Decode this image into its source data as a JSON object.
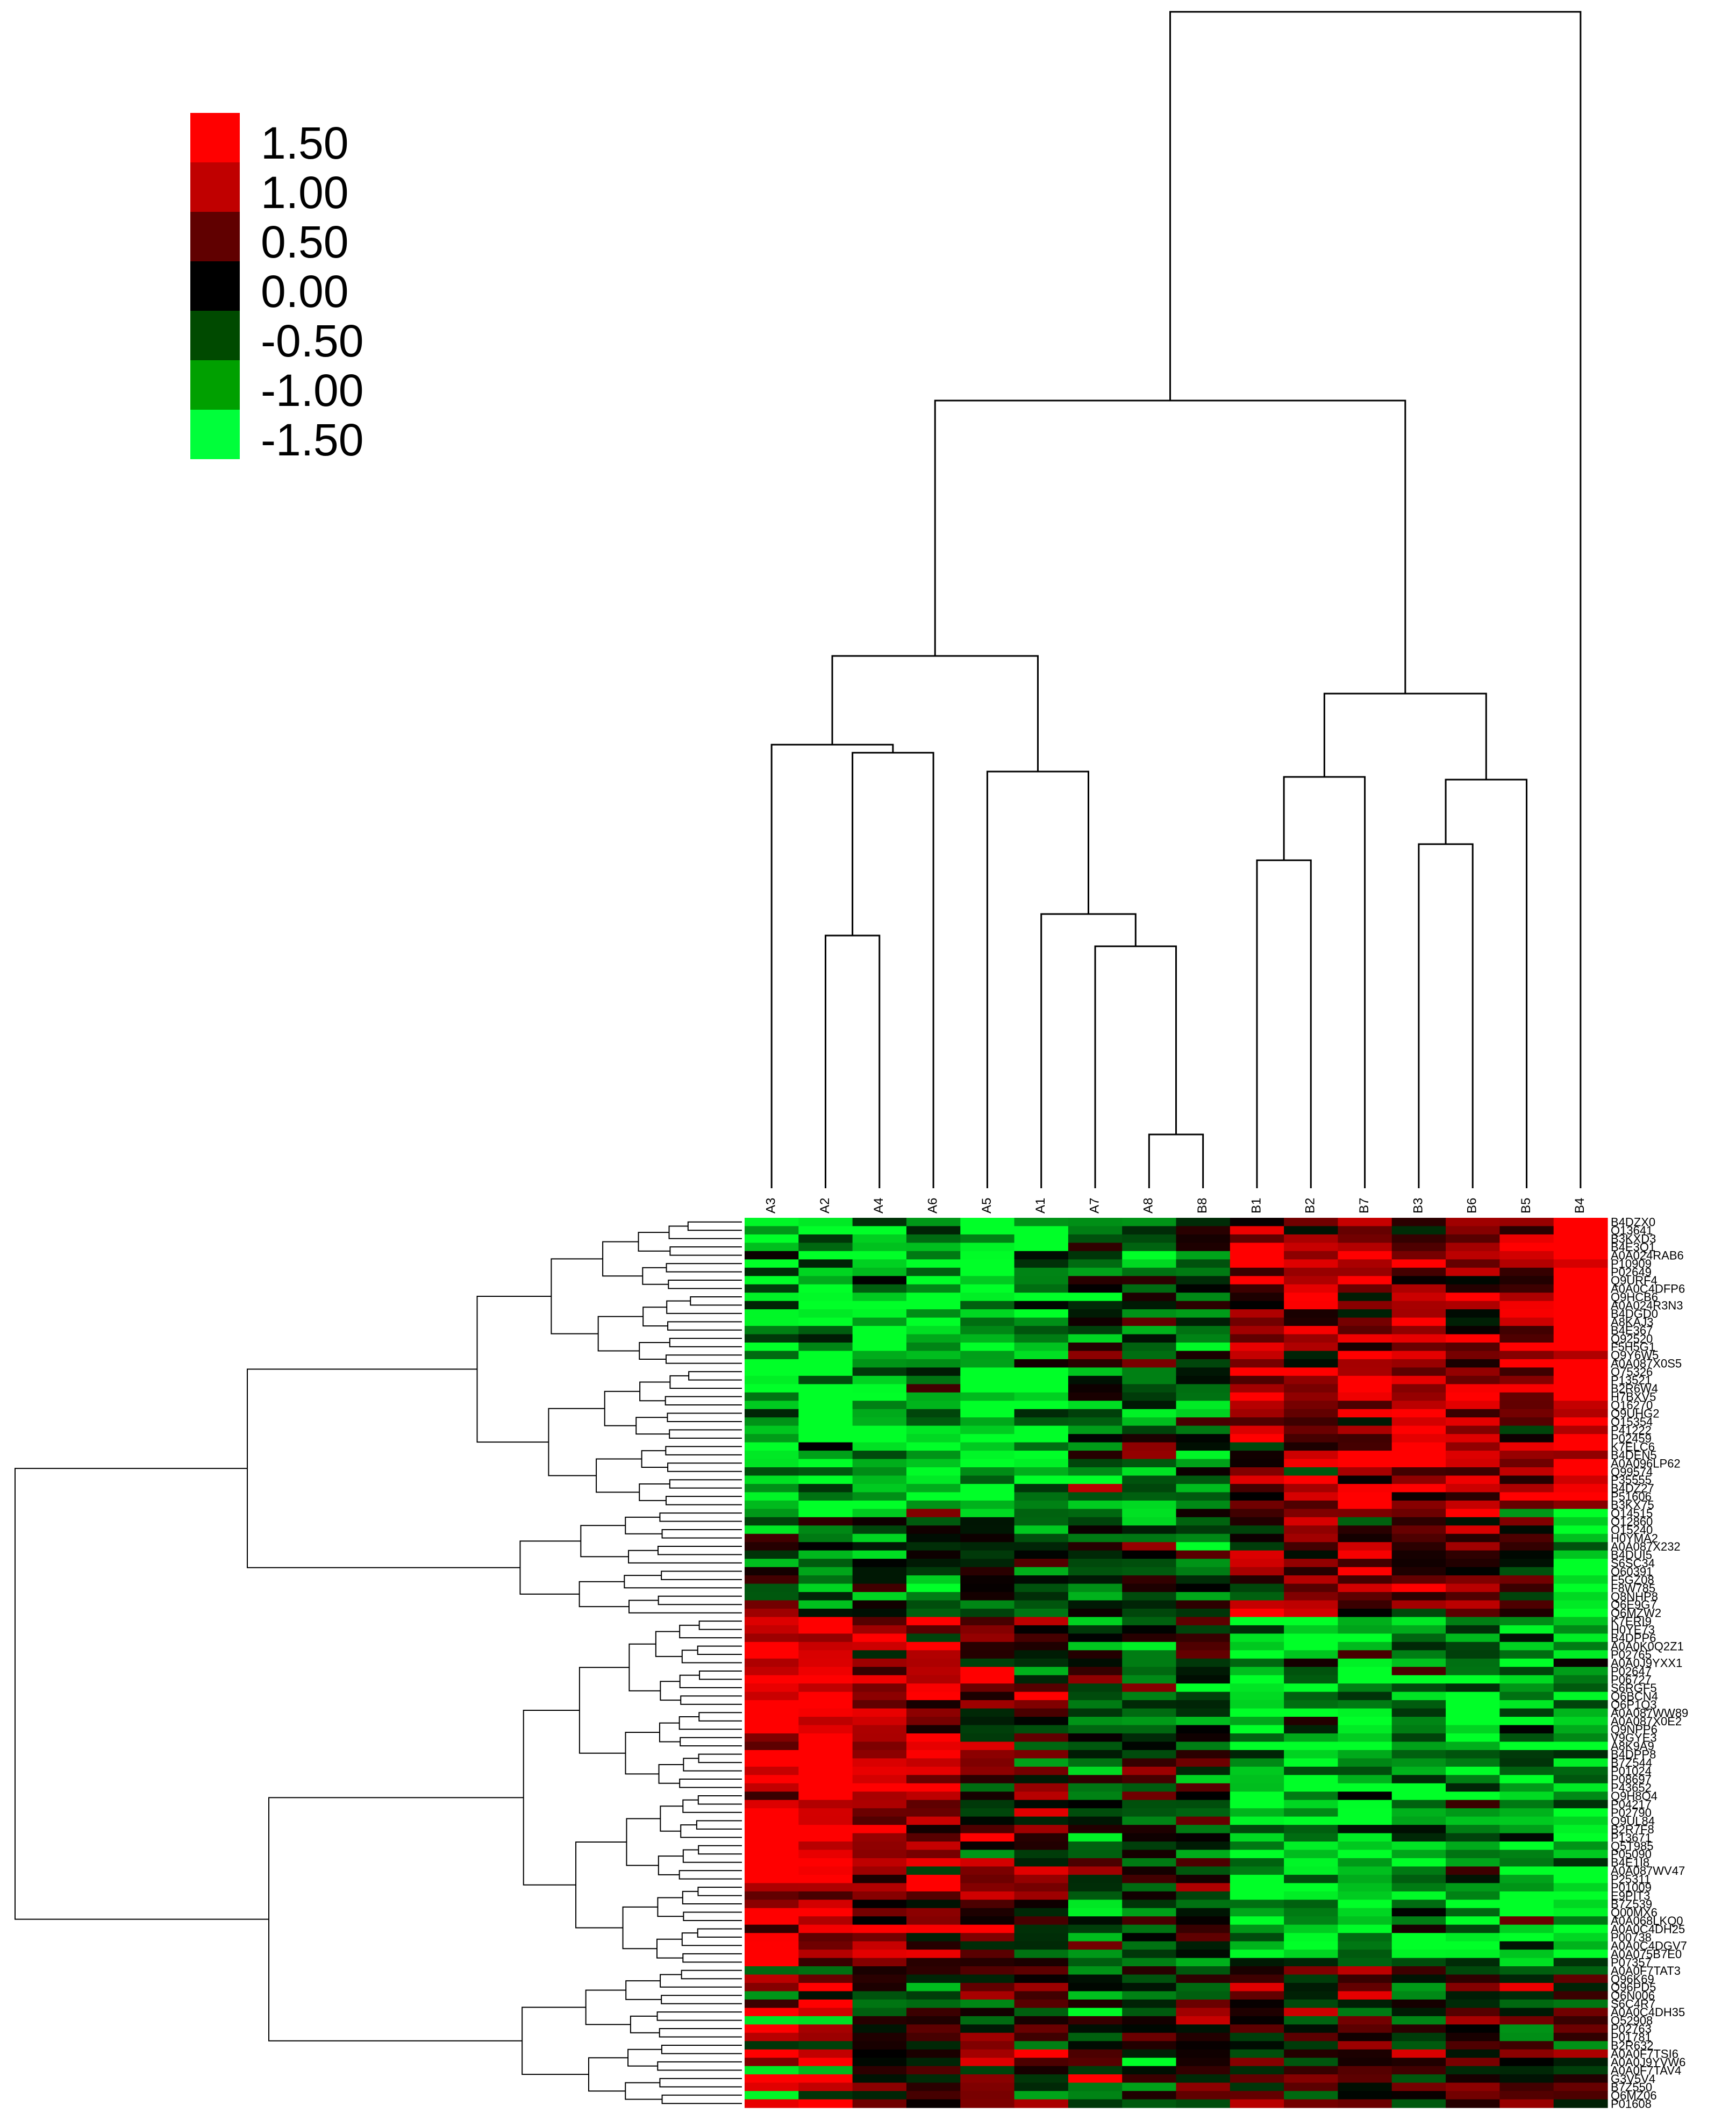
{
  "chart_data": {
    "type": "heatmap",
    "legend": {
      "labels": [
        "1.50",
        "1.00",
        "0.50",
        "0.00",
        "-0.50",
        "-1.00",
        "-1.50"
      ],
      "values": [
        1.5,
        1.0,
        0.5,
        0.0,
        -0.5,
        -1.0,
        -1.5
      ],
      "colors": [
        "#ff0000",
        "#c00000",
        "#600000",
        "#000000",
        "#004a00",
        "#00a000",
        "#00ff3a"
      ],
      "placement": "top-left"
    },
    "columns": [
      "A3",
      "A2",
      "A4",
      "A6",
      "A5",
      "A1",
      "A7",
      "A8",
      "B8",
      "B1",
      "B2",
      "B7",
      "B3",
      "B6",
      "B5",
      "B4"
    ],
    "rows": [
      "B4DZX0",
      "Q13641",
      "B3KXD3",
      "B4E3Q1",
      "A0A024RAB6",
      "P10909",
      "P02649",
      "Q9URF4",
      "A0A0C4DFP6",
      "Q9HCB6",
      "A0A024R3N3",
      "B4DGD0",
      "A8KAJ3",
      "B4E367",
      "Q92520",
      "F5H5G1",
      "Q9Y6W5",
      "A0A087X0S5",
      "O75326",
      "P13521",
      "B2R6W4",
      "H7BXV5",
      "Q16270",
      "Q9UHG2",
      "O15354",
      "P41222",
      "P02459",
      "K7ELC6",
      "B4DEN5",
      "A0A096LP62",
      "Q99574",
      "P35555",
      "B4DZ27",
      "P51606",
      "B3KX75",
      "Q14515",
      "O12860",
      "O15240",
      "H0YMA2",
      "A0A087X232",
      "B4DUI5",
      "S6SC34",
      "O60391",
      "F5GZ08",
      "F8W785",
      "Q8NHP8",
      "Q6E9G7",
      "Q6MZW2",
      "K7ERI9",
      "H0YE73",
      "B4DPP6",
      "A0A0K0Q2Z1",
      "P02765",
      "A0A0J9YXX1",
      "P02647",
      "P06727",
      "S6RGF5",
      "Q6BCN4",
      "Q6P1Q3",
      "A0A087WW89",
      "A0A087X0E2",
      "Q9NPP6",
      "V9GYE3",
      "A8K9A9",
      "B4DPP8",
      "B7Z544",
      "P01024",
      "P08697",
      "P43652",
      "Q9H8O4",
      "P04217",
      "P02790",
      "Q9UL84",
      "B2R7F8",
      "P13671",
      "Q5T985",
      "P05090",
      "B4E1I8",
      "A0A087WV47",
      "P25311",
      "P01009",
      "E9PIT3",
      "B7Z539",
      "Q00MX6",
      "A0A068LKQ0",
      "A0A0C4DH25",
      "P00738",
      "A0A0C4DGV7",
      "A0A075B7E0",
      "P07357",
      "A0A0F7TAT3",
      "Q96K69",
      "Q96PD5",
      "Q6N006",
      "S6C4R7",
      "A0A0C4DH35",
      "O52908",
      "P02763",
      "P01781",
      "B2R632",
      "A0A0F7TSI6",
      "A0A0J9YVW6",
      "A0A0F7TAV4",
      "G3V5V4",
      "B7Z550",
      "Q6MZ06",
      "P01608"
    ],
    "row_label_stride": 1,
    "column_clusters": "hierarchical",
    "row_clusters": "hierarchical"
  }
}
